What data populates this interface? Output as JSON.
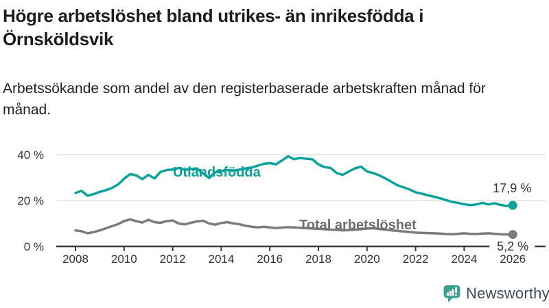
{
  "header": {
    "title": "Högre arbetslöshet bland utrikes- än inrikesfödda i Örnsköldsvik",
    "subtitle": "Arbetssökande som andel av den registerbaserade arbetskraften månad för månad."
  },
  "footer": {
    "brand": "Newsworthy"
  },
  "colors": {
    "accent_teal": "#0aa29a",
    "line_gray": "#7b7b7b",
    "label_gray": "#6e6e6e",
    "axis_dark": "#3b3b3b",
    "gridline": "#d9d9d9",
    "tick_text": "#333333",
    "logo_teal": "#3da08e",
    "logo_text": "#3f4b57"
  },
  "chart_data": {
    "type": "line",
    "title": "Högre arbetslöshet bland utrikes- än inrikesfödda i Örnsköldsvik",
    "xlabel": "",
    "ylabel": "Arbetssökande som andel av den registerbaserade arbetskraften",
    "x_start_year": 2008,
    "x_step_years": 0.25,
    "xlim": [
      2007.2,
      2026.4
    ],
    "ylim": [
      0,
      42
    ],
    "grid": "horizontal",
    "legend_position": "inline-labels",
    "yticks": [
      {
        "label": "0 %",
        "value": 0
      },
      {
        "label": "20 %",
        "value": 20
      },
      {
        "label": "40 %",
        "value": 40
      }
    ],
    "xticks": [
      2008,
      2010,
      2012,
      2014,
      2016,
      2018,
      2020,
      2022,
      2024,
      2026
    ],
    "series": [
      {
        "name": "Utlandsfödda",
        "color": "#0aa29a",
        "end_label": "17,9 %",
        "end_value": 17.9,
        "values": [
          23.3,
          24.2,
          22.1,
          22.8,
          23.8,
          24.5,
          25.5,
          27.0,
          29.5,
          31.5,
          31.0,
          29.3,
          31.2,
          29.6,
          32.5,
          33.3,
          33.5,
          34.2,
          33.3,
          33.8,
          34.0,
          31.8,
          29.8,
          32.3,
          32.8,
          33.3,
          33.0,
          33.5,
          34.0,
          34.4,
          35.2,
          36.0,
          36.3,
          35.8,
          37.5,
          39.3,
          38.0,
          38.6,
          38.2,
          38.0,
          35.8,
          34.6,
          34.2,
          32.0,
          31.2,
          32.7,
          34.0,
          34.8,
          32.7,
          32.0,
          31.0,
          29.7,
          28.2,
          26.7,
          25.8,
          24.8,
          23.6,
          23.0,
          22.3,
          21.7,
          21.0,
          20.2,
          19.4,
          19.0,
          18.4,
          18.0,
          18.3,
          19.0,
          18.3,
          18.8,
          18.1,
          17.6,
          17.9
        ]
      },
      {
        "name": "Total arbetslöshet",
        "color": "#7b7b7b",
        "end_label": "5,2 %",
        "end_value": 5.2,
        "values": [
          7.0,
          6.6,
          5.7,
          6.2,
          7.0,
          7.9,
          8.8,
          9.7,
          11.0,
          11.8,
          11.0,
          10.4,
          11.6,
          10.6,
          10.3,
          11.0,
          11.3,
          10.0,
          9.6,
          10.3,
          10.9,
          11.2,
          10.0,
          9.5,
          10.2,
          10.6,
          10.0,
          9.7,
          9.0,
          8.6,
          8.3,
          8.6,
          8.3,
          8.0,
          8.2,
          8.4,
          8.3,
          8.1,
          8.0,
          7.8,
          7.7,
          7.5,
          7.3,
          7.2,
          7.0,
          7.1,
          7.3,
          7.5,
          7.8,
          7.9,
          7.6,
          7.3,
          7.0,
          6.8,
          6.5,
          6.3,
          6.0,
          5.9,
          5.8,
          5.7,
          5.6,
          5.4,
          5.3,
          5.5,
          5.7,
          5.5,
          5.4,
          5.6,
          5.7,
          5.5,
          5.3,
          5.2,
          5.2
        ]
      }
    ]
  }
}
